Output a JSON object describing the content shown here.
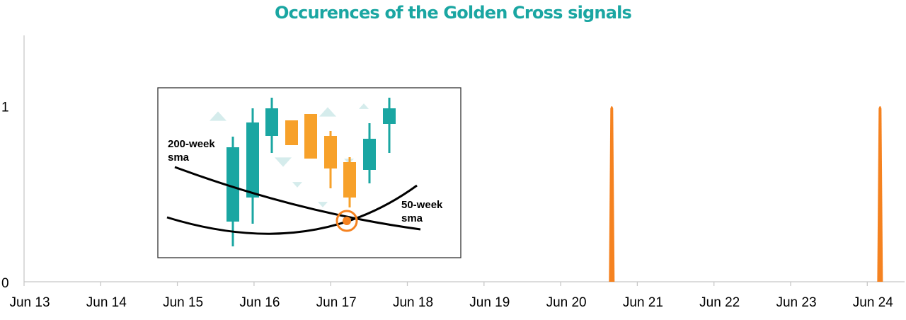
{
  "chart_data": {
    "type": "bar",
    "title": "Occurences of the Golden Cross signals",
    "xlabel": "",
    "ylabel": "",
    "x_tick_labels": [
      "Jun 13",
      "Jun 14",
      "Jun 15",
      "Jun 16",
      "Jun 17",
      "Jun 18",
      "Jun 19",
      "Jun 20",
      "Jun 21",
      "Jun 22",
      "Jun 23",
      "Jun 24"
    ],
    "y_tick_labels": [
      "0",
      "1"
    ],
    "ylim": [
      0,
      1.4
    ],
    "grid": false,
    "series": [
      {
        "color": "#f58220",
        "points": [
          {
            "x": "2020-09",
            "y": 1
          },
          {
            "x": "2024-03",
            "y": 1
          }
        ]
      }
    ]
  },
  "colors": {
    "title": "#1aa6a2",
    "signal": "#f58220",
    "candle_up": "#1aa6a2",
    "candle_down": "#f7a12a",
    "arrow": "#d5ecec",
    "axis": "#c8c8c8"
  },
  "inset": {
    "label_200": [
      "200-week",
      "sma"
    ],
    "label_50": [
      "50-week",
      "sma"
    ]
  }
}
